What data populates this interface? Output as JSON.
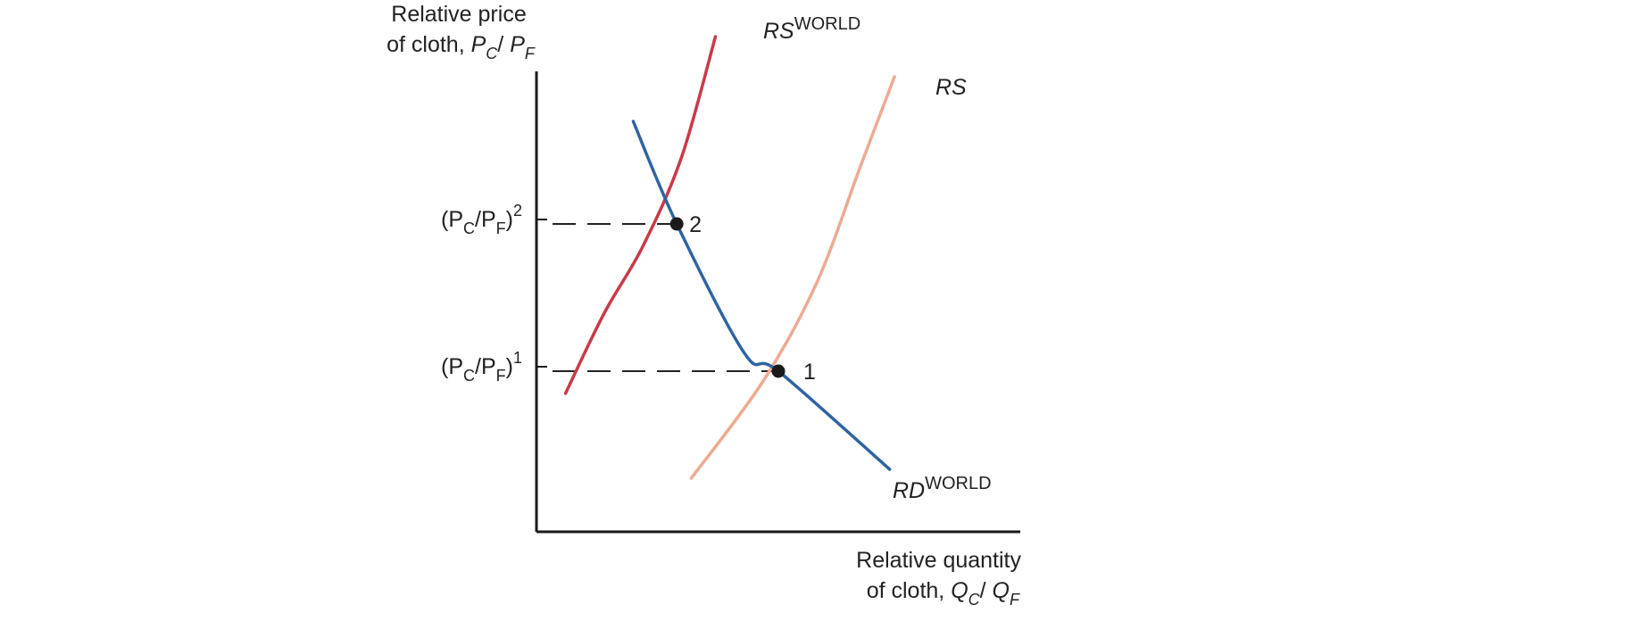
{
  "colors": {
    "rs_world": "#c93a48",
    "rs": "#eeaa92",
    "rd_world": "#2f63a3",
    "axis": "#1a1a1a"
  },
  "chart_data": {
    "type": "line",
    "axes": {
      "y_label_line1": "Relative price",
      "y_label_line2_prefix": "of cloth, ",
      "x_label_line1": "Relative quantity",
      "x_label_line2_prefix": "of cloth, ",
      "x_range": [
        0,
        100
      ],
      "y_range": [
        0,
        100
      ],
      "grid": false
    },
    "y_ticks": [
      {
        "label": "(P",
        "sub1": "C",
        "mid": "/P",
        "sub2": "F",
        "close": ")",
        "sup": "2",
        "value": 69
      },
      {
        "label": "(P",
        "sub1": "C",
        "mid": "/P",
        "sub2": "F",
        "close": ")",
        "sup": "1",
        "value": 36
      }
    ],
    "series": [
      {
        "name": "RS",
        "label": "RS",
        "superscript": "WORLD",
        "color": "#c93a48",
        "points": [
          [
            6,
            31
          ],
          [
            14,
            49
          ],
          [
            22,
            64
          ],
          [
            30,
            84
          ],
          [
            37,
            111
          ]
        ]
      },
      {
        "name": "RS",
        "label": "RS",
        "superscript": "",
        "color": "#eeaa92",
        "points": [
          [
            32,
            12
          ],
          [
            47,
            34
          ],
          [
            58,
            56
          ],
          [
            67,
            82
          ],
          [
            74,
            102
          ]
        ]
      },
      {
        "name": "RD",
        "label": "RD",
        "superscript": "WORLD",
        "color": "#2f63a3",
        "points": [
          [
            20,
            92
          ],
          [
            29,
            69
          ],
          [
            43,
            40
          ],
          [
            50,
            36
          ],
          [
            73,
            14
          ]
        ]
      }
    ],
    "equilibria": [
      {
        "label": "2",
        "x": 29,
        "y": 69
      },
      {
        "label": "1",
        "x": 50,
        "y": 36
      }
    ]
  }
}
